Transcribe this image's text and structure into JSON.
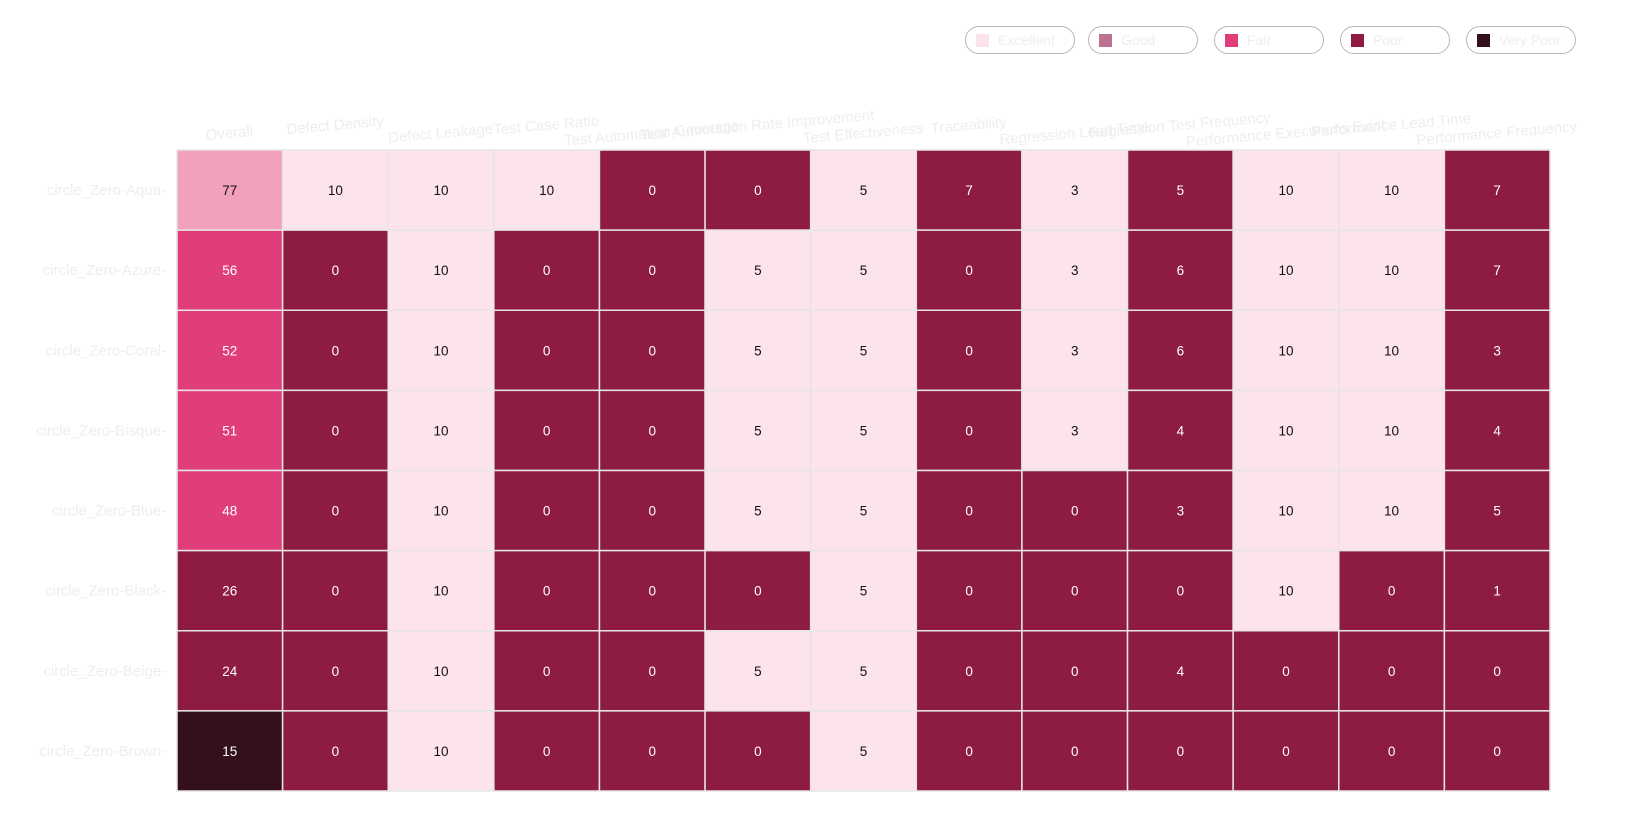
{
  "chart_data": {
    "type": "heatmap",
    "title": "",
    "columns": [
      "Overall",
      "Defect Density",
      "Defect Leakage",
      "Test Case Ratio",
      "Test Automation Coverage",
      "Test Automation Rate Improvement",
      "Test Effectiveness",
      "Traceability",
      "Regression Lead Time",
      "Regression Test Frequency",
      "Performance Executions Exist",
      "Performance Lead Time",
      "Performance Frequency"
    ],
    "rows": [
      "circle_Zero-Aqua",
      "circle_Zero-Azure",
      "circle_Zero-Coral",
      "circle_Zero-Bisque",
      "circle_Zero-Blue",
      "circle_Zero-Black",
      "circle_Zero-Beige",
      "circle_Zero-Brown"
    ],
    "values": [
      [
        77,
        10,
        10,
        10,
        0,
        0,
        5,
        7,
        3,
        5,
        10,
        10,
        7
      ],
      [
        56,
        0,
        10,
        0,
        0,
        5,
        5,
        0,
        3,
        6,
        10,
        10,
        7
      ],
      [
        52,
        0,
        10,
        0,
        0,
        5,
        5,
        0,
        3,
        6,
        10,
        10,
        3
      ],
      [
        51,
        0,
        10,
        0,
        0,
        5,
        5,
        0,
        3,
        4,
        10,
        10,
        4
      ],
      [
        48,
        0,
        10,
        0,
        0,
        5,
        5,
        0,
        0,
        3,
        10,
        10,
        5
      ],
      [
        26,
        0,
        10,
        0,
        0,
        0,
        5,
        0,
        0,
        0,
        10,
        0,
        1
      ],
      [
        24,
        0,
        10,
        0,
        0,
        5,
        5,
        0,
        0,
        4,
        0,
        0,
        0
      ],
      [
        15,
        0,
        10,
        0,
        0,
        0,
        5,
        0,
        0,
        0,
        0,
        0,
        0
      ]
    ],
    "legend": [
      {
        "label": "Excellent",
        "color": "#fce3ec"
      },
      {
        "label": "Good",
        "color": "#bf7191"
      },
      {
        "label": "Fair",
        "color": "#e03e7a"
      },
      {
        "label": "Poor",
        "color": "#8e1b40"
      },
      {
        "label": "Very Poor",
        "color": "#33101b"
      }
    ],
    "cell_colors": [
      [
        "#f2a0bd",
        "#fce3ec",
        "#fce3ec",
        "#fce3ec",
        "#8e1b40",
        "#8e1b40",
        "#fce3ec",
        "#8e1b40",
        "#fce3ec",
        "#8e1b40",
        "#fce3ec",
        "#fce3ec",
        "#8e1b40"
      ],
      [
        "#e03e7a",
        "#8e1b40",
        "#fce3ec",
        "#8e1b40",
        "#8e1b40",
        "#fce3ec",
        "#fce3ec",
        "#8e1b40",
        "#fce3ec",
        "#8e1b40",
        "#fce3ec",
        "#fce3ec",
        "#8e1b40"
      ],
      [
        "#e03e7a",
        "#8e1b40",
        "#fce3ec",
        "#8e1b40",
        "#8e1b40",
        "#fce3ec",
        "#fce3ec",
        "#8e1b40",
        "#fce3ec",
        "#8e1b40",
        "#fce3ec",
        "#fce3ec",
        "#8e1b40"
      ],
      [
        "#e03e7a",
        "#8e1b40",
        "#fce3ec",
        "#8e1b40",
        "#8e1b40",
        "#fce3ec",
        "#fce3ec",
        "#8e1b40",
        "#fce3ec",
        "#8e1b40",
        "#fce3ec",
        "#fce3ec",
        "#8e1b40"
      ],
      [
        "#e03e7a",
        "#8e1b40",
        "#fce3ec",
        "#8e1b40",
        "#8e1b40",
        "#fce3ec",
        "#fce3ec",
        "#8e1b40",
        "#8e1b40",
        "#8e1b40",
        "#fce3ec",
        "#fce3ec",
        "#8e1b40"
      ],
      [
        "#8e1b40",
        "#8e1b40",
        "#fce3ec",
        "#8e1b40",
        "#8e1b40",
        "#8e1b40",
        "#fce3ec",
        "#8e1b40",
        "#8e1b40",
        "#8e1b40",
        "#fce3ec",
        "#8e1b40",
        "#8e1b40"
      ],
      [
        "#8e1b40",
        "#8e1b40",
        "#fce3ec",
        "#8e1b40",
        "#8e1b40",
        "#fce3ec",
        "#fce3ec",
        "#8e1b40",
        "#8e1b40",
        "#8e1b40",
        "#8e1b40",
        "#8e1b40",
        "#8e1b40"
      ],
      [
        "#33101b",
        "#8e1b40",
        "#fce3ec",
        "#8e1b40",
        "#8e1b40",
        "#8e1b40",
        "#fce3ec",
        "#8e1b40",
        "#8e1b40",
        "#8e1b40",
        "#8e1b40",
        "#8e1b40",
        "#8e1b40"
      ]
    ],
    "cell_border_color": "#e6e6e6",
    "label_color_on_dark": "#ffffff",
    "label_color_on_light": "#111111",
    "legend_placement": "top-right",
    "grid": false
  }
}
